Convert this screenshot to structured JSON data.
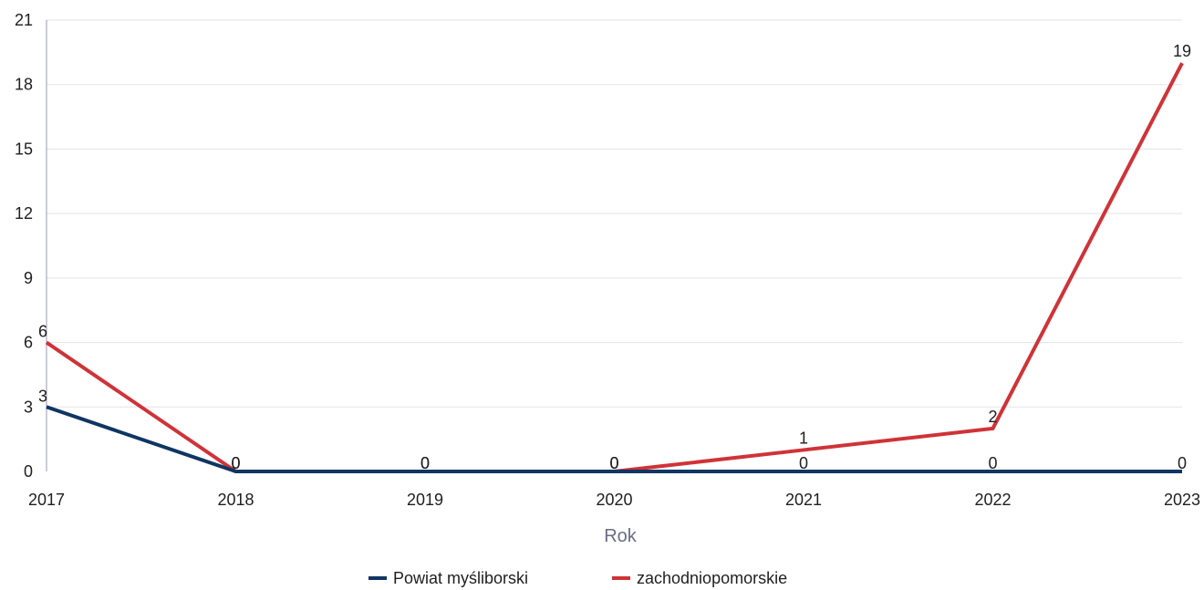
{
  "chart_data": {
    "type": "line",
    "x": [
      "2017",
      "2018",
      "2019",
      "2020",
      "2021",
      "2022",
      "2023"
    ],
    "xlabel": "Rok",
    "ylabel": "",
    "ylim": [
      0,
      21
    ],
    "yticks": [
      0,
      3,
      6,
      9,
      12,
      15,
      18,
      21
    ],
    "grid": "horizontal",
    "legend_position": "bottom",
    "series": [
      {
        "name": "Powiat myśliborski",
        "color": "#0f3563",
        "values": [
          3,
          0,
          0,
          0,
          0,
          0,
          0
        ]
      },
      {
        "name": "zachodniopomorskie",
        "color": "#cf3338",
        "values": [
          6,
          0,
          0,
          0,
          1,
          2,
          19
        ]
      }
    ]
  }
}
